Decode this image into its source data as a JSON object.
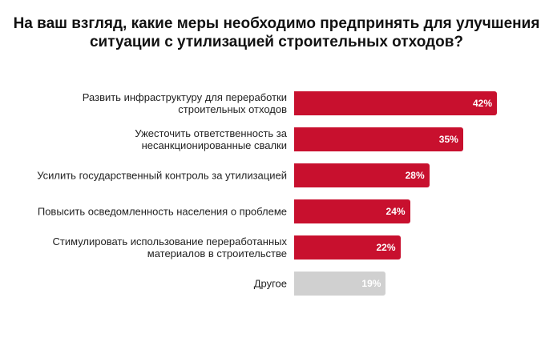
{
  "chart_data": {
    "type": "bar",
    "orientation": "horizontal",
    "title": "На ваш взгляд, какие меры необходимо предпринять для улучшения ситуации с утилизацией строительных отходов?",
    "categories": [
      "Развить инфраструктуру для переработки строительных отходов",
      "Ужесточить ответственность за несанкционированные свалки",
      "Усилить государственный контроль за утилизацией",
      "Повысить осведомленность населения о проблеме",
      "Стимулировать использование переработанных материалов в строительстве",
      "Другое"
    ],
    "values": [
      42,
      35,
      28,
      24,
      22,
      19
    ],
    "value_labels": [
      "42%",
      "35%",
      "28%",
      "24%",
      "22%",
      "19%"
    ],
    "colors": [
      "#c8102e",
      "#c8102e",
      "#c8102e",
      "#c8102e",
      "#c8102e",
      "#d0d0d0"
    ]
  }
}
